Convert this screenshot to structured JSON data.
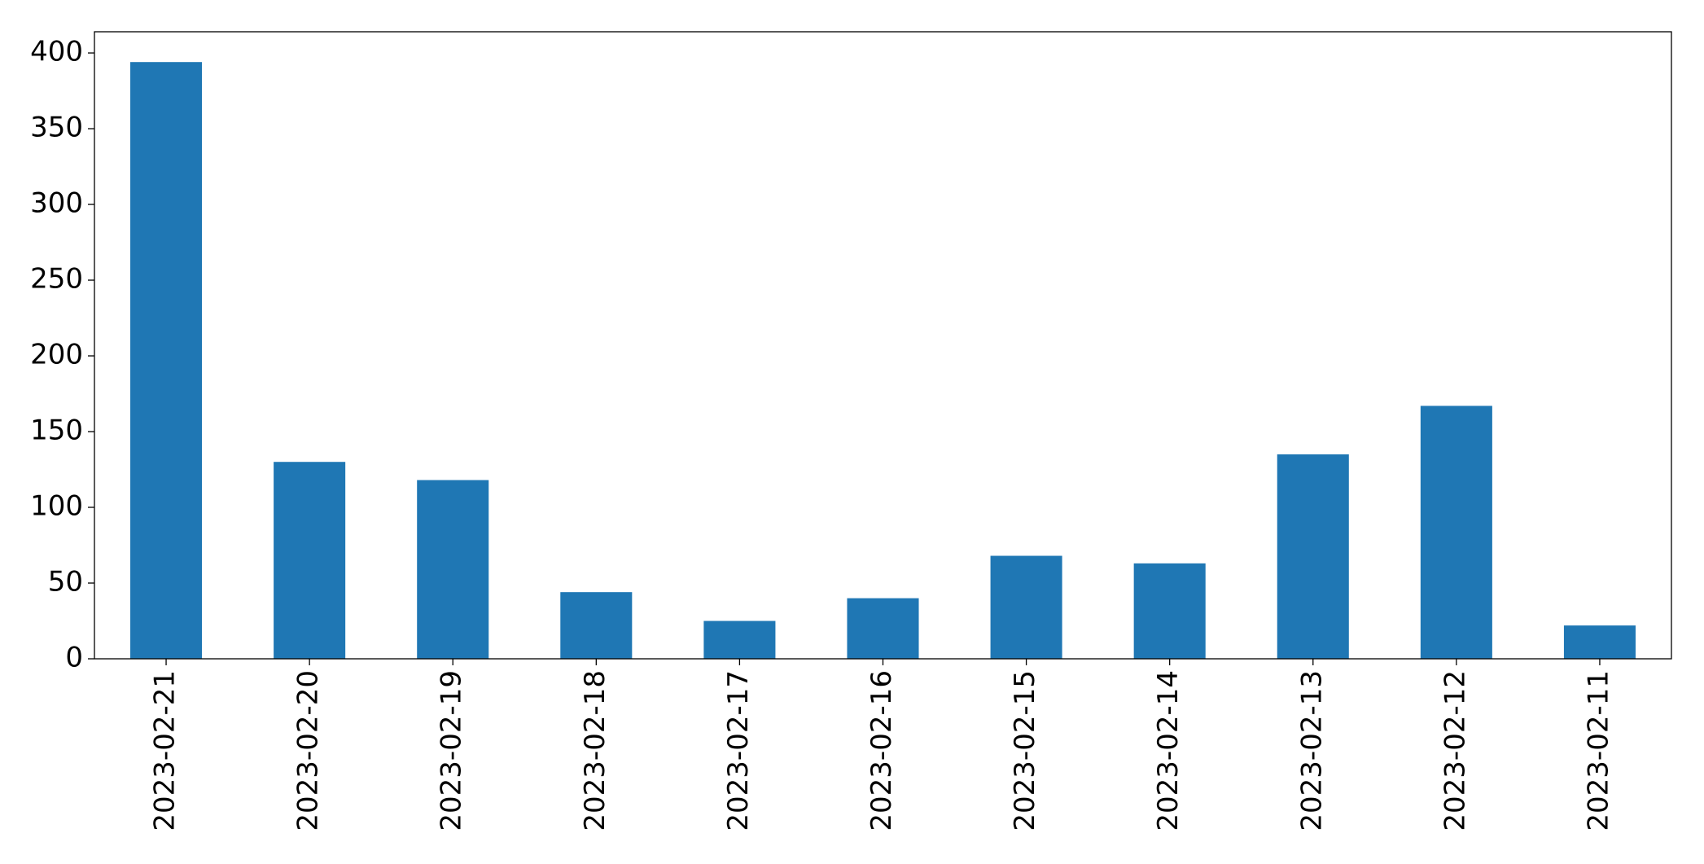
{
  "chart_data": {
    "type": "bar",
    "categories": [
      "2023-02-21",
      "2023-02-20",
      "2023-02-19",
      "2023-02-18",
      "2023-02-17",
      "2023-02-16",
      "2023-02-15",
      "2023-02-14",
      "2023-02-13",
      "2023-02-12",
      "2023-02-11"
    ],
    "values": [
      394,
      130,
      118,
      44,
      25,
      40,
      68,
      63,
      135,
      167,
      22
    ],
    "color": "#1f77b4",
    "ylim": [
      0,
      414
    ],
    "yticks": [
      0,
      50,
      100,
      150,
      200,
      250,
      300,
      350,
      400
    ],
    "grid": false
  }
}
